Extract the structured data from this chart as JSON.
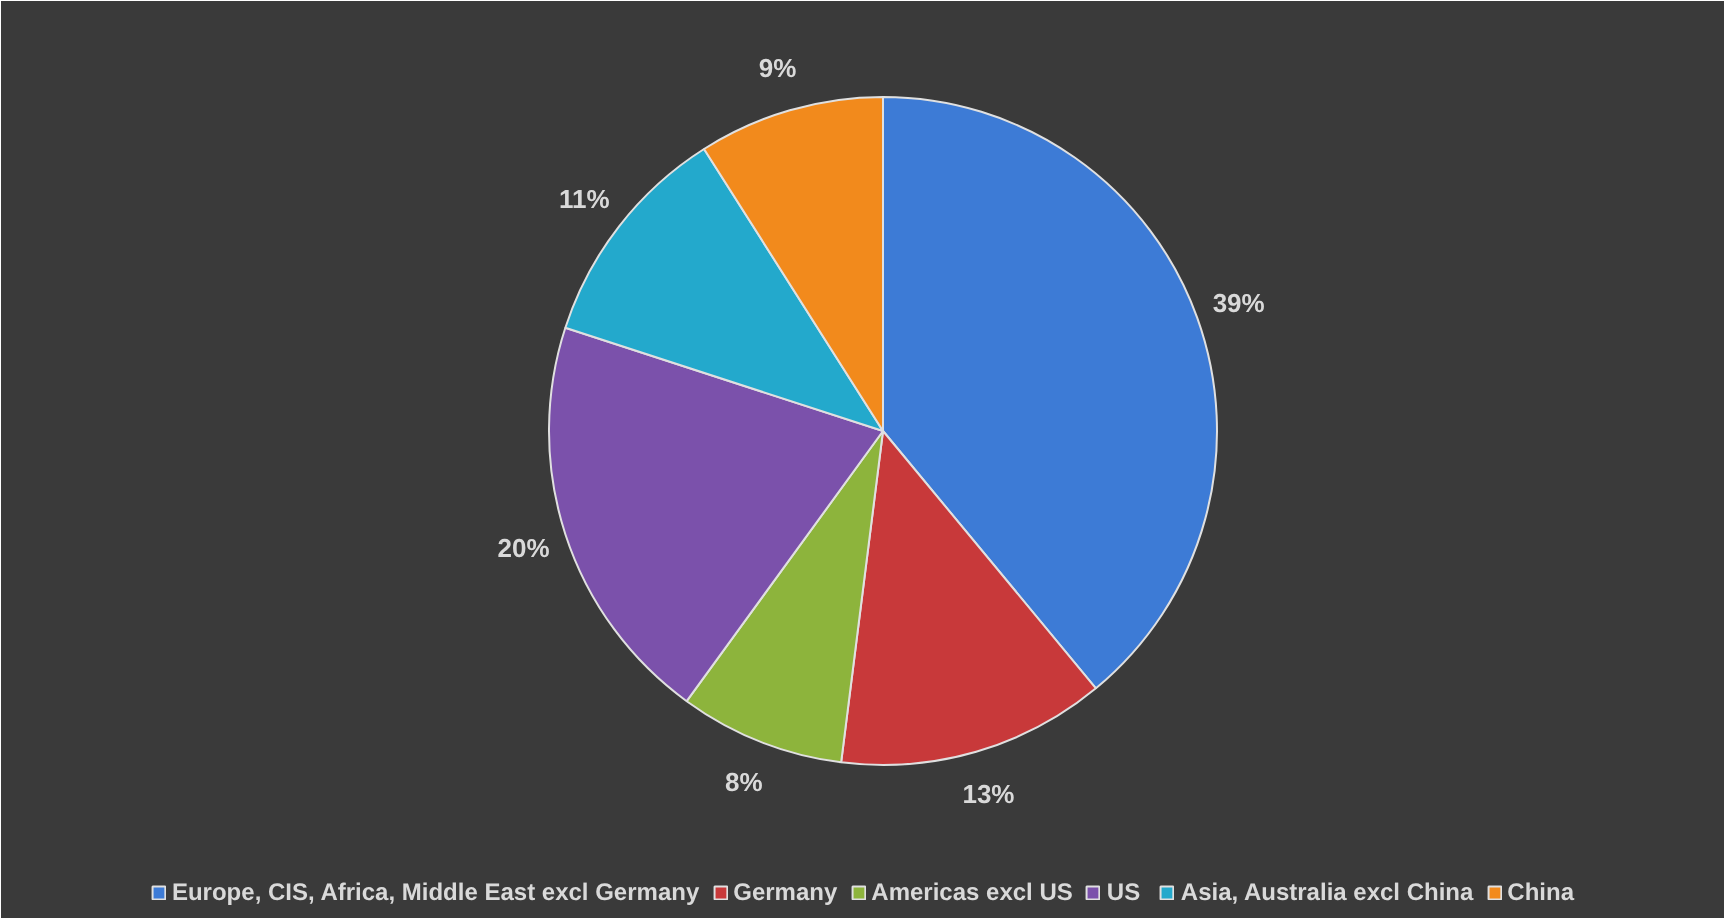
{
  "chart_data": {
    "type": "pie",
    "categories": [
      "Europe, CIS, Africa, Middle East excl Germany",
      "Germany",
      "Americas excl US",
      "US",
      "Asia, Australia excl China",
      "China"
    ],
    "values": [
      39,
      13,
      8,
      20,
      11,
      9
    ],
    "colors": [
      "#3d7bd6",
      "#c8393a",
      "#8db43c",
      "#7b51ab",
      "#23a9cc",
      "#f28a1c"
    ],
    "value_labels": [
      "39%",
      "13%",
      "8%",
      "20%",
      "11%",
      "9%"
    ],
    "legend": "bottom"
  }
}
